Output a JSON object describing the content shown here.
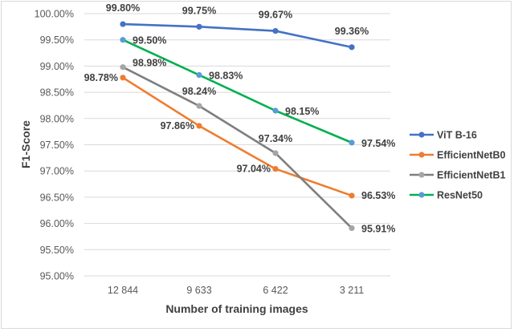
{
  "chart_data": {
    "type": "line",
    "title": "",
    "xlabel": "Number of training images",
    "ylabel": "F1-Score",
    "categories": [
      "12 844",
      "9 633",
      "6 422",
      "3 211"
    ],
    "ylim": [
      95.0,
      100.0
    ],
    "yticks": [
      "100.00%",
      "99.50%",
      "99.00%",
      "98.50%",
      "98.00%",
      "97.50%",
      "97.00%",
      "96.50%",
      "96.00%",
      "95.50%",
      "95.00%"
    ],
    "grid": true,
    "legend_position": "right",
    "series": [
      {
        "name": "ViT B-16",
        "color": "#4472c4",
        "values": [
          99.8,
          99.75,
          99.67,
          99.36
        ],
        "labels": [
          "99.80%",
          "99.75%",
          "99.67%",
          "99.36%"
        ]
      },
      {
        "name": "EfficientNetB0",
        "color": "#ed7d31",
        "values": [
          98.78,
          97.86,
          97.04,
          96.53
        ],
        "labels": [
          "98.78%",
          "97.86%",
          "97.04%",
          "96.53%"
        ]
      },
      {
        "name": "EfficientNetB1",
        "color": "#7f7f7f",
        "marker_color": "#a5a5a5",
        "values": [
          98.98,
          98.24,
          97.34,
          95.91
        ],
        "labels": [
          "98.98%",
          "98.24%",
          "97.34%",
          "95.91%"
        ]
      },
      {
        "name": "ResNet50",
        "color": "#00b050",
        "marker_color": "#5b9bd5",
        "values": [
          99.5,
          98.83,
          98.15,
          97.54
        ],
        "labels": [
          "99.50%",
          "98.83%",
          "98.15%",
          "97.54%"
        ]
      }
    ]
  }
}
